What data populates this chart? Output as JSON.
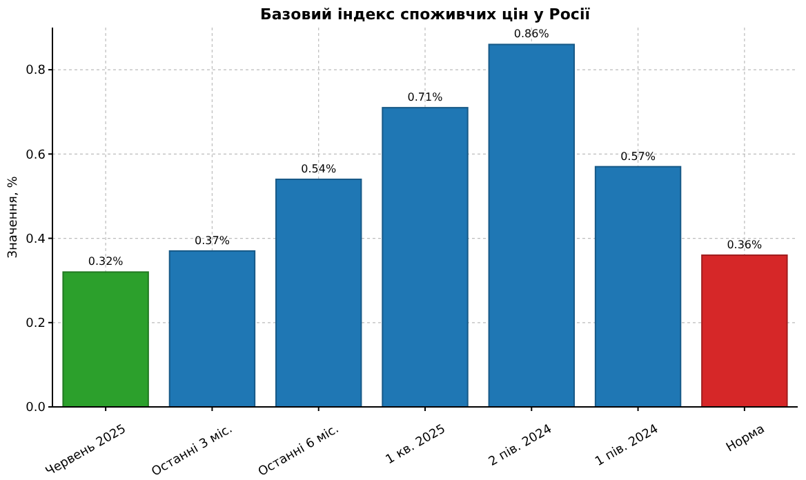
{
  "chart_data": {
    "type": "bar",
    "title": "Базовий індекс споживчих цін у Росії",
    "ylabel": "Значення, %",
    "categories": [
      "Червень 2025",
      "Останні 3 міс.",
      "Останні 6 міс.",
      "1 кв. 2025",
      "2 пів. 2024",
      "1 пів. 2024",
      "Норма"
    ],
    "values": [
      0.32,
      0.37,
      0.54,
      0.71,
      0.86,
      0.57,
      0.36
    ],
    "colors": [
      "#2ca02c",
      "#1f77b4",
      "#1f77b4",
      "#1f77b4",
      "#1f77b4",
      "#1f77b4",
      "#d62728"
    ],
    "value_labels": [
      "0.32%",
      "0.37%",
      "0.54%",
      "0.71%",
      "0.86%",
      "0.57%",
      "0.36%"
    ],
    "ylim": [
      0,
      0.9
    ],
    "yticks": [
      {
        "value": 0,
        "label": "0.0"
      },
      {
        "value": 0.2,
        "label": "0.2"
      },
      {
        "value": 0.4,
        "label": "0.4"
      },
      {
        "value": 0.6,
        "label": "0.6"
      },
      {
        "value": 0.8,
        "label": "0.8"
      }
    ],
    "grid": true
  }
}
